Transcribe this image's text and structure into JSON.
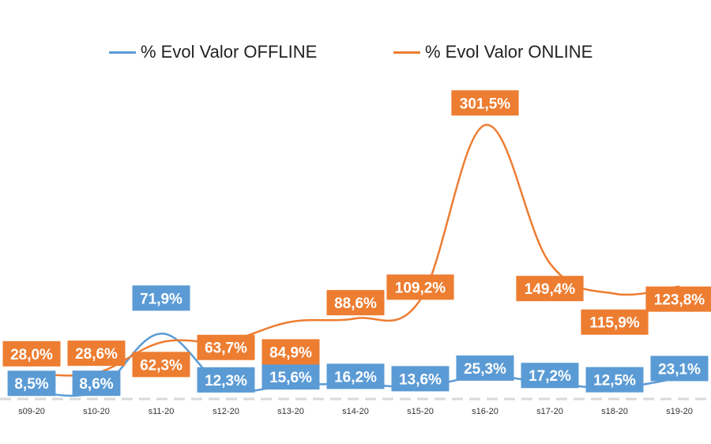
{
  "chart_data": {
    "type": "line",
    "title": "",
    "xlabel": "",
    "ylabel": "",
    "categories": [
      "s09-20",
      "s10-20",
      "s11-20",
      "s12-20",
      "s13-20",
      "s14-20",
      "s15-20",
      "s16-20",
      "s17-20",
      "s18-20",
      "s19-20"
    ],
    "series": [
      {
        "name": "% Evol Valor OFFLINE",
        "color": "#5B9BD5",
        "values": [
          8.5,
          8.6,
          71.9,
          12.3,
          15.6,
          16.2,
          13.6,
          25.3,
          17.2,
          12.5,
          23.1
        ],
        "labels": [
          "8,5%",
          "8,6%",
          "71,9%",
          "12,3%",
          "15,6%",
          "16,2%",
          "13,6%",
          "25,3%",
          "17,2%",
          "12,5%",
          "23,1%"
        ]
      },
      {
        "name": "% Evol Valor ONLINE",
        "color": "#ED7D31",
        "values": [
          28.0,
          28.6,
          62.3,
          63.7,
          84.9,
          88.6,
          109.2,
          301.5,
          149.4,
          115.9,
          123.8
        ],
        "labels": [
          "28,0%",
          "28,6%",
          "62,3%",
          "63,7%",
          "84,9%",
          "88,6%",
          "109,2%",
          "301,5%",
          "149,4%",
          "115,9%",
          "123,8%"
        ]
      }
    ],
    "ylim": [
      -10,
      350
    ],
    "grid": false,
    "legend": "top"
  }
}
